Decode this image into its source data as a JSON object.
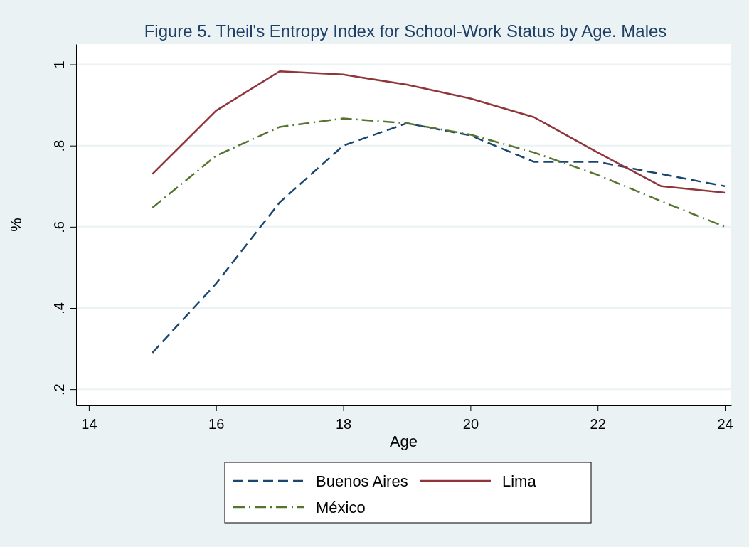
{
  "chart_data": {
    "type": "line",
    "title": "Figure 5. Theil's Entropy Index for School-Work Status by Age. Males",
    "xlabel": "Age",
    "ylabel": "%",
    "x": [
      15,
      16,
      17,
      18,
      19,
      20,
      21,
      22,
      23,
      24
    ],
    "xlim": [
      13.8,
      24.1
    ],
    "xticks": [
      14,
      16,
      18,
      20,
      22,
      24
    ],
    "ylim": [
      0.16,
      1.05
    ],
    "yticks": [
      {
        "value": 0.2,
        "label": ".2"
      },
      {
        "value": 0.4,
        "label": ".4"
      },
      {
        "value": 0.6,
        "label": ".6"
      },
      {
        "value": 0.8,
        "label": ".8"
      },
      {
        "value": 1,
        "label": "1"
      }
    ],
    "grid": "y",
    "legend": "bottom",
    "marker": "none",
    "series": [
      {
        "name": "Buenos Aires",
        "color": "#1a476f",
        "line_style": "dashed",
        "values": [
          0.29,
          0.46,
          0.66,
          0.8,
          0.855,
          0.825,
          0.76,
          0.76,
          0.73,
          0.7
        ]
      },
      {
        "name": "Lima",
        "color": "#90353b",
        "line_style": "solid",
        "values": [
          0.73,
          0.886,
          0.983,
          0.975,
          0.95,
          0.916,
          0.87,
          0.783,
          0.7,
          0.684
        ]
      },
      {
        "name": "México",
        "color": "#55752f",
        "line_style": "dashdot",
        "values": [
          0.647,
          0.775,
          0.846,
          0.867,
          0.855,
          0.827,
          0.783,
          0.728,
          0.663,
          0.6
        ]
      }
    ]
  }
}
